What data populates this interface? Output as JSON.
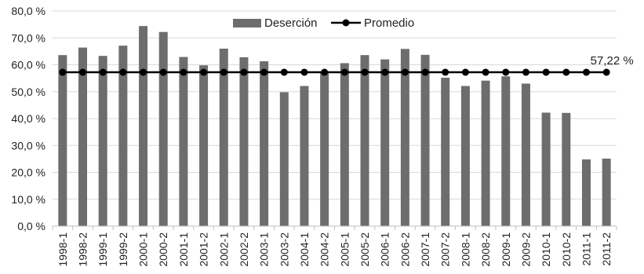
{
  "chart_data": {
    "type": "bar",
    "categories": [
      "1998-1",
      "1998-2",
      "1999-1",
      "1999-2",
      "2000-1",
      "2000-2",
      "2001-1",
      "2001-2",
      "2002-1",
      "2002-2",
      "2003-1",
      "2003-2",
      "2004-1",
      "2004-2",
      "2005-1",
      "2005-2",
      "2006-1",
      "2006-2",
      "2007-1",
      "2007-2",
      "2008-1",
      "2008-2",
      "2009-1",
      "2009-2",
      "2010-1",
      "2010-2",
      "2011-1",
      "2011-2"
    ],
    "series": [
      {
        "name": "Deserción",
        "type": "bar",
        "color": "#6d6d6d",
        "values": [
          63.6,
          66.4,
          63.3,
          67.1,
          74.4,
          72.2,
          62.9,
          59.8,
          66.0,
          62.8,
          61.3,
          49.8,
          52.1,
          57.2,
          60.6,
          63.6,
          62.0,
          65.9,
          63.7,
          55.2,
          52.1,
          54.1,
          55.7,
          53.0,
          42.2,
          42.1,
          24.8,
          25.1
        ]
      },
      {
        "name": "Promedio",
        "type": "line",
        "color": "#000000",
        "values": [
          57.22,
          57.22,
          57.22,
          57.22,
          57.22,
          57.22,
          57.22,
          57.22,
          57.22,
          57.22,
          57.22,
          57.22,
          57.22,
          57.22,
          57.22,
          57.22,
          57.22,
          57.22,
          57.22,
          57.22,
          57.22,
          57.22,
          57.22,
          57.22,
          57.22,
          57.22,
          57.22,
          57.22
        ]
      }
    ],
    "y_ticks": [
      "0,0 %",
      "10,0 %",
      "20,0 %",
      "30,0 %",
      "40,0 %",
      "50,0 %",
      "60,0 %",
      "70,0 %",
      "80,0 %"
    ],
    "ylim": [
      0,
      80
    ],
    "grid": true,
    "legend": {
      "placement": "top-center",
      "items": [
        "Deserción",
        "Promedio"
      ]
    },
    "annotations": [
      {
        "text": "57,22 %",
        "series": "Promedio",
        "category": "2011-2"
      }
    ]
  }
}
